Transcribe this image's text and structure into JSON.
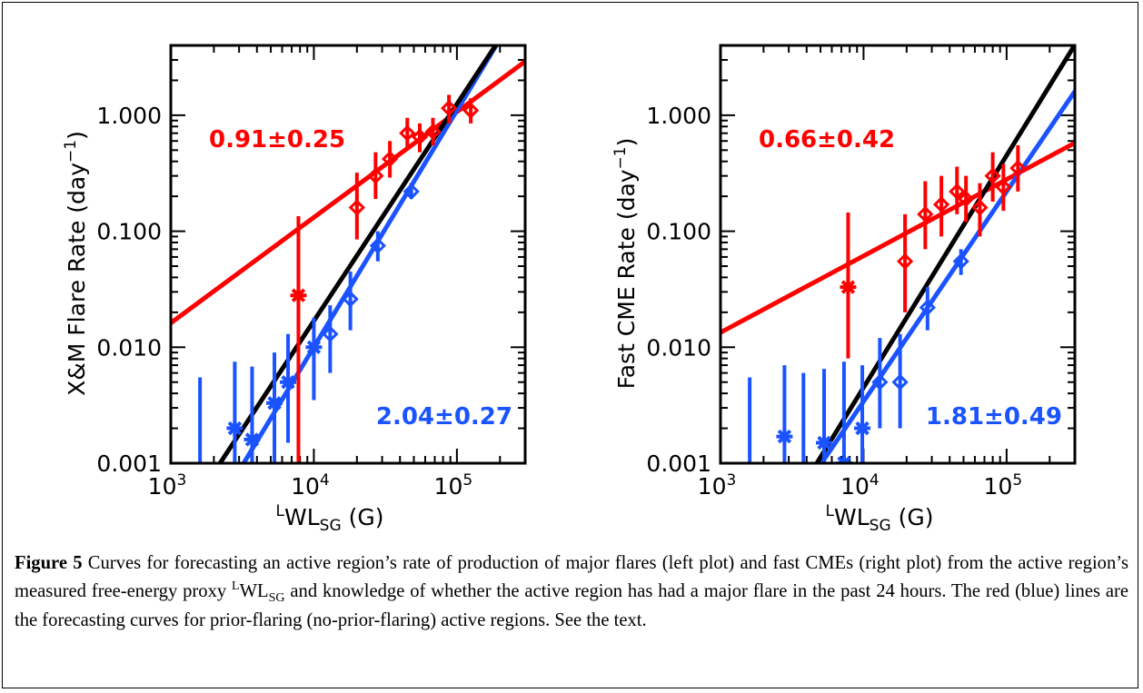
{
  "figure": {
    "caption_label": "Figure 5",
    "caption_text_1": " Curves for forecasting an active region’s rate of production of major flares (left plot) and fast CMEs (right plot) from the active region’s measured free-energy proxy ",
    "caption_proxy_pre": "L",
    "caption_proxy_main": "WL",
    "caption_proxy_sub": "SG",
    "caption_text_2": " and knowledge of whether the active region has had a major flare in the past 24 hours.  The red (blue) lines are the forecasting curves for prior-flaring (no-prior-flaring) active regions.  See the text."
  },
  "colors": {
    "prior": "#ff0000",
    "noprior": "#1a53ff",
    "combined": "#000000"
  },
  "chart_data": [
    {
      "type": "scatter",
      "xscale": "log",
      "yscale": "log",
      "xlim": [
        1000,
        300000
      ],
      "ylim": [
        0.001,
        4.0
      ],
      "xticks": [
        {
          "v": 1000,
          "label": "10",
          "exp": "3"
        },
        {
          "v": 10000,
          "label": "10",
          "exp": "4"
        },
        {
          "v": 100000,
          "label": "10",
          "exp": "5"
        }
      ],
      "yticks": [
        {
          "v": 0.001,
          "label": "0.001"
        },
        {
          "v": 0.01,
          "label": "0.010"
        },
        {
          "v": 0.1,
          "label": "0.100"
        },
        {
          "v": 1,
          "label": "1.000"
        }
      ],
      "ylabel_main": "X&M Flare Rate (day",
      "ylabel_exp": "−1",
      "ylabel_end": ")",
      "xlabel_pre": "L",
      "xlabel_main": "WL",
      "xlabel_sub": "SG",
      "xlabel_end": " (G)",
      "annotations": [
        {
          "text": "0.91±0.25",
          "series": "prior",
          "position": "top-left"
        },
        {
          "text": "2.04±0.27",
          "series": "noprior",
          "position": "bottom-right"
        }
      ],
      "series": [
        {
          "key": "prior",
          "fit": {
            "slope": 0.91,
            "anchor": [
              100000,
              1.07
            ]
          },
          "points": [
            {
              "x": 7800,
              "y": 0.028,
              "lo": 0.001,
              "hi": 0.135,
              "marker": "asterisk"
            },
            {
              "x": 20000,
              "y": 0.16,
              "lo": 0.085,
              "hi": 0.32,
              "marker": "diamond"
            },
            {
              "x": 27000,
              "y": 0.3,
              "lo": 0.19,
              "hi": 0.48,
              "marker": "diamond"
            },
            {
              "x": 34000,
              "y": 0.42,
              "lo": 0.29,
              "hi": 0.6,
              "marker": "diamond"
            },
            {
              "x": 45000,
              "y": 0.7,
              "lo": 0.5,
              "hi": 0.95,
              "marker": "diamond"
            },
            {
              "x": 55000,
              "y": 0.65,
              "lo": 0.48,
              "hi": 0.85,
              "marker": "diamond"
            },
            {
              "x": 68000,
              "y": 0.72,
              "lo": 0.55,
              "hi": 0.95,
              "marker": "diamond"
            },
            {
              "x": 88000,
              "y": 1.15,
              "lo": 0.85,
              "hi": 1.5,
              "marker": "diamond"
            },
            {
              "x": 125000,
              "y": 1.1,
              "lo": 0.85,
              "hi": 1.4,
              "marker": "diamond"
            }
          ]
        },
        {
          "key": "noprior",
          "fit": {
            "slope": 2.04,
            "anchor": [
              100000,
              1.1
            ]
          },
          "points": [
            {
              "x": 1600,
              "y": 0.0008,
              "lo": 0.0005,
              "hi": 0.0055,
              "marker": "asterisk"
            },
            {
              "x": 2800,
              "y": 0.002,
              "lo": 0.0005,
              "hi": 0.0075,
              "marker": "asterisk"
            },
            {
              "x": 3700,
              "y": 0.0016,
              "lo": 0.0005,
              "hi": 0.0068,
              "marker": "asterisk"
            },
            {
              "x": 5300,
              "y": 0.0033,
              "lo": 0.0008,
              "hi": 0.009,
              "marker": "asterisk"
            },
            {
              "x": 6600,
              "y": 0.005,
              "lo": 0.0015,
              "hi": 0.013,
              "marker": "asterisk"
            },
            {
              "x": 10000,
              "y": 0.01,
              "lo": 0.0035,
              "hi": 0.018,
              "marker": "asterisk"
            },
            {
              "x": 13000,
              "y": 0.013,
              "lo": 0.006,
              "hi": 0.023,
              "marker": "diamond"
            },
            {
              "x": 18000,
              "y": 0.026,
              "lo": 0.014,
              "hi": 0.045,
              "marker": "diamond"
            },
            {
              "x": 28000,
              "y": 0.075,
              "lo": 0.055,
              "hi": 0.1,
              "marker": "diamond"
            },
            {
              "x": 48000,
              "y": 0.22,
              "lo": 0.19,
              "hi": 0.26,
              "marker": "diamond"
            }
          ]
        },
        {
          "key": "combined",
          "fit": {
            "slope": 1.87,
            "anchor": [
              100000,
              1.25
            ]
          },
          "points": []
        }
      ]
    },
    {
      "type": "scatter",
      "xscale": "log",
      "yscale": "log",
      "xlim": [
        1000,
        300000
      ],
      "ylim": [
        0.001,
        4.0
      ],
      "xticks": [
        {
          "v": 1000,
          "label": "10",
          "exp": "3"
        },
        {
          "v": 10000,
          "label": "10",
          "exp": "4"
        },
        {
          "v": 100000,
          "label": "10",
          "exp": "5"
        }
      ],
      "yticks": [
        {
          "v": 0.001,
          "label": "0.001"
        },
        {
          "v": 0.01,
          "label": "0.010"
        },
        {
          "v": 0.1,
          "label": "0.100"
        },
        {
          "v": 1,
          "label": "1.000"
        }
      ],
      "ylabel_main": "Fast CME Rate (day",
      "ylabel_exp": "−1",
      "ylabel_end": ")",
      "xlabel_pre": "L",
      "xlabel_main": "WL",
      "xlabel_sub": "SG",
      "xlabel_end": " (G)",
      "annotations": [
        {
          "text": "0.66±0.42",
          "series": "prior",
          "position": "top-left"
        },
        {
          "text": "1.81±0.49",
          "series": "noprior",
          "position": "bottom-right"
        }
      ],
      "series": [
        {
          "key": "prior",
          "fit": {
            "slope": 0.66,
            "anchor": [
              100000,
              0.28
            ]
          },
          "points": [
            {
              "x": 7800,
              "y": 0.033,
              "lo": 0.008,
              "hi": 0.145,
              "marker": "asterisk"
            },
            {
              "x": 19500,
              "y": 0.055,
              "lo": 0.02,
              "hi": 0.14,
              "marker": "diamond"
            },
            {
              "x": 27000,
              "y": 0.14,
              "lo": 0.07,
              "hi": 0.27,
              "marker": "diamond"
            },
            {
              "x": 35000,
              "y": 0.17,
              "lo": 0.09,
              "hi": 0.3,
              "marker": "diamond"
            },
            {
              "x": 45000,
              "y": 0.22,
              "lo": 0.14,
              "hi": 0.36,
              "marker": "diamond"
            },
            {
              "x": 52000,
              "y": 0.19,
              "lo": 0.12,
              "hi": 0.3,
              "marker": "diamond"
            },
            {
              "x": 65000,
              "y": 0.16,
              "lo": 0.09,
              "hi": 0.26,
              "marker": "diamond"
            },
            {
              "x": 80000,
              "y": 0.3,
              "lo": 0.18,
              "hi": 0.48,
              "marker": "diamond"
            },
            {
              "x": 95000,
              "y": 0.24,
              "lo": 0.15,
              "hi": 0.38,
              "marker": "diamond"
            },
            {
              "x": 120000,
              "y": 0.35,
              "lo": 0.22,
              "hi": 0.55,
              "marker": "diamond"
            }
          ]
        },
        {
          "key": "noprior",
          "fit": {
            "slope": 1.81,
            "anchor": [
              100000,
              0.22
            ]
          },
          "points": [
            {
              "x": 1600,
              "y": 0.0008,
              "lo": 0.0005,
              "hi": 0.0055,
              "marker": "asterisk"
            },
            {
              "x": 2800,
              "y": 0.0017,
              "lo": 0.0005,
              "hi": 0.007,
              "marker": "asterisk"
            },
            {
              "x": 3800,
              "y": 0.0008,
              "lo": 0.0005,
              "hi": 0.006,
              "marker": "asterisk"
            },
            {
              "x": 5300,
              "y": 0.0015,
              "lo": 0.0005,
              "hi": 0.0065,
              "marker": "asterisk"
            },
            {
              "x": 7300,
              "y": 0.001,
              "lo": 0.0005,
              "hi": 0.0075,
              "marker": "asterisk"
            },
            {
              "x": 9800,
              "y": 0.002,
              "lo": 0.0006,
              "hi": 0.007,
              "marker": "asterisk"
            },
            {
              "x": 13000,
              "y": 0.005,
              "lo": 0.002,
              "hi": 0.012,
              "marker": "diamond"
            },
            {
              "x": 18000,
              "y": 0.005,
              "lo": 0.002,
              "hi": 0.013,
              "marker": "diamond"
            },
            {
              "x": 28000,
              "y": 0.022,
              "lo": 0.014,
              "hi": 0.033,
              "marker": "diamond"
            },
            {
              "x": 48000,
              "y": 0.055,
              "lo": 0.042,
              "hi": 0.07,
              "marker": "diamond"
            }
          ]
        },
        {
          "key": "combined",
          "fit": {
            "slope": 2.0,
            "anchor": [
              100000,
              0.45
            ]
          },
          "points": []
        }
      ]
    }
  ]
}
